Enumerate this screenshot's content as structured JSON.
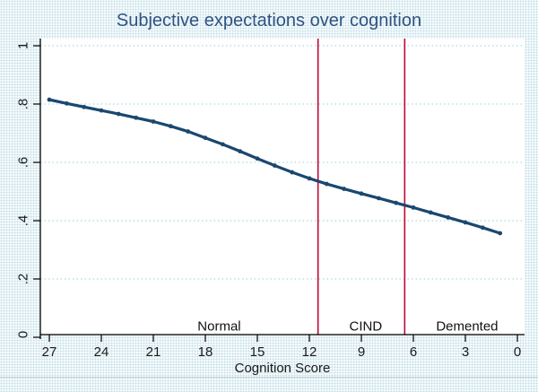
{
  "chart_data": {
    "type": "line",
    "title": "Subjective expectations over cognition",
    "xlabel": "Cognition Score",
    "ylabel": "",
    "x_reversed": true,
    "xlim": [
      27,
      0
    ],
    "ylim": [
      0,
      1
    ],
    "x_ticks": [
      27,
      24,
      21,
      18,
      15,
      12,
      9,
      6,
      3,
      0
    ],
    "y_ticks": [
      0,
      0.2,
      0.4,
      0.6,
      0.8,
      1
    ],
    "y_tick_labels": [
      "0",
      ".2",
      ".4",
      ".6",
      ".8",
      "1"
    ],
    "grid": "horizontal-dotted",
    "legend": "none",
    "series": [
      {
        "name": "subjective-expectations",
        "marker": "circle",
        "x": [
          27,
          26,
          25,
          24,
          23,
          22,
          21,
          20,
          19,
          18,
          17,
          16,
          15,
          14,
          13,
          12,
          11,
          10,
          9,
          8,
          7,
          6,
          5,
          4,
          3,
          2,
          1
        ],
        "y": [
          0.815,
          0.802,
          0.79,
          0.778,
          0.766,
          0.753,
          0.74,
          0.724,
          0.706,
          0.684,
          0.662,
          0.638,
          0.613,
          0.589,
          0.566,
          0.545,
          0.526,
          0.509,
          0.493,
          0.477,
          0.461,
          0.445,
          0.428,
          0.411,
          0.394,
          0.376,
          0.357
        ]
      }
    ],
    "reference_lines": [
      {
        "x": 11.5
      },
      {
        "x": 6.5
      }
    ],
    "zones": [
      {
        "label": "Normal",
        "x": 17.2
      },
      {
        "label": "CIND",
        "x": 8.75
      },
      {
        "label": "Demented",
        "x": 2.9
      }
    ],
    "colors": {
      "series": "#1a476f",
      "reference_line": "#c10534",
      "gridline": "#9fd0db",
      "axis": "#000000",
      "title": "#2f5382",
      "plot_background": "#ffffff",
      "outer_background": "#e8f1f4"
    }
  }
}
